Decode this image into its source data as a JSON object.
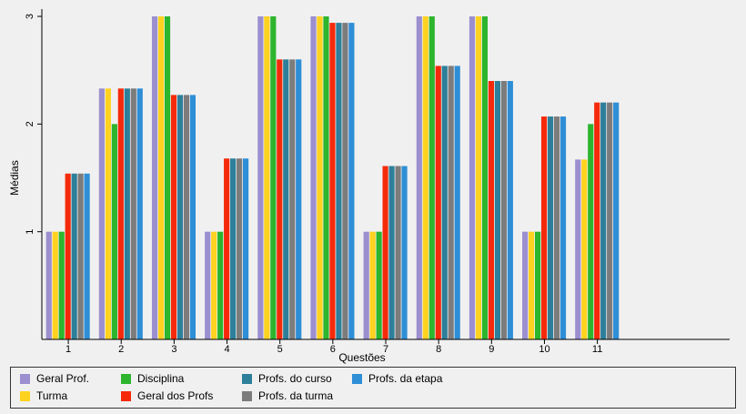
{
  "chart_data": {
    "type": "bar",
    "title": "",
    "xlabel": "Questões",
    "ylabel": "Médias",
    "ylim": [
      0,
      3
    ],
    "xlim": [
      0.5,
      13.5
    ],
    "yticks": [
      "1",
      "2",
      "3"
    ],
    "categories": [
      "1",
      "2",
      "3",
      "4",
      "5",
      "6",
      "7",
      "8",
      "9",
      "10",
      "11"
    ],
    "grid": false,
    "legend_position": "bottom",
    "series": [
      {
        "name": "Geral Prof.",
        "color": "#9b8fd0",
        "values": [
          1,
          2.33,
          3,
          1,
          3,
          3,
          1,
          3,
          3,
          1,
          1.67
        ]
      },
      {
        "name": "Turma",
        "color": "#ffd21f",
        "values": [
          1,
          2.33,
          3,
          1,
          3,
          3,
          1,
          3,
          3,
          1,
          1.67
        ]
      },
      {
        "name": "Disciplina",
        "color": "#2db52d",
        "values": [
          1,
          2,
          3,
          1,
          3,
          3,
          1,
          3,
          3,
          1,
          2
        ]
      },
      {
        "name": "Geral dos Profs",
        "color": "#f52a0a",
        "values": [
          1.54,
          2.33,
          2.27,
          1.68,
          2.6,
          2.94,
          1.61,
          2.54,
          2.4,
          2.07,
          2.2
        ]
      },
      {
        "name": "Profs. do curso",
        "color": "#2d7f9a",
        "values": [
          1.54,
          2.33,
          2.27,
          1.68,
          2.6,
          2.94,
          1.61,
          2.54,
          2.4,
          2.07,
          2.2
        ]
      },
      {
        "name": "Profs. da turma",
        "color": "#7c7c7c",
        "values": [
          1.54,
          2.33,
          2.27,
          1.68,
          2.6,
          2.94,
          1.61,
          2.54,
          2.4,
          2.07,
          2.2
        ]
      },
      {
        "name": "Profs. da etapa",
        "color": "#2e8ed6",
        "values": [
          1.54,
          2.33,
          2.27,
          1.68,
          2.6,
          2.94,
          1.61,
          2.54,
          2.4,
          2.07,
          2.2
        ]
      }
    ]
  }
}
